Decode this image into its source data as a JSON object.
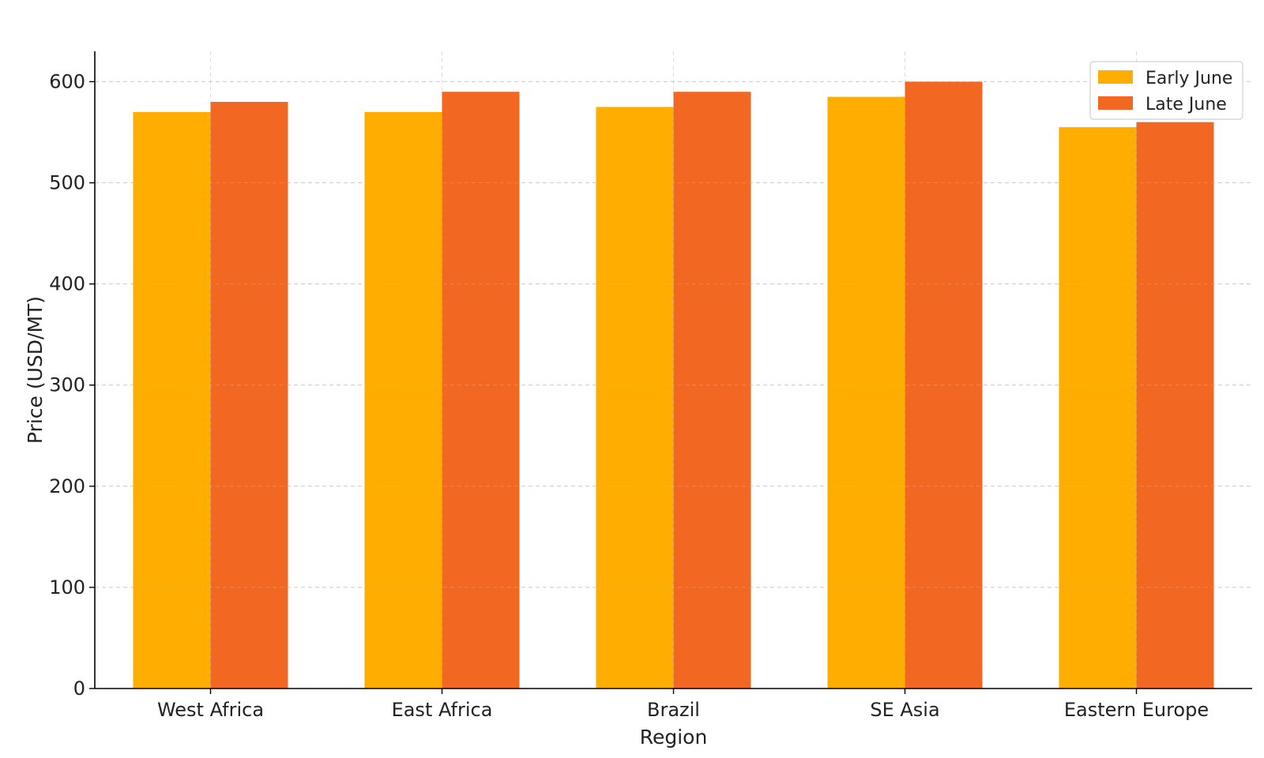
{
  "chart_data": {
    "type": "bar",
    "title": "",
    "xlabel": "Region",
    "ylabel": "Price (USD/MT)",
    "categories": [
      "West Africa",
      "East Africa",
      "Brazil",
      "SE Asia",
      "Eastern Europe"
    ],
    "series": [
      {
        "name": "Early June",
        "color": "#FFAE00",
        "values": [
          570,
          570,
          575,
          585,
          555
        ]
      },
      {
        "name": "Late June",
        "color": "#F26722",
        "values": [
          580,
          590,
          590,
          600,
          560
        ]
      }
    ],
    "ylim": [
      0,
      630
    ],
    "yticks": [
      "0",
      "100",
      "200",
      "300",
      "400",
      "500",
      "600"
    ],
    "grid": true,
    "legend_position": "top-right"
  }
}
